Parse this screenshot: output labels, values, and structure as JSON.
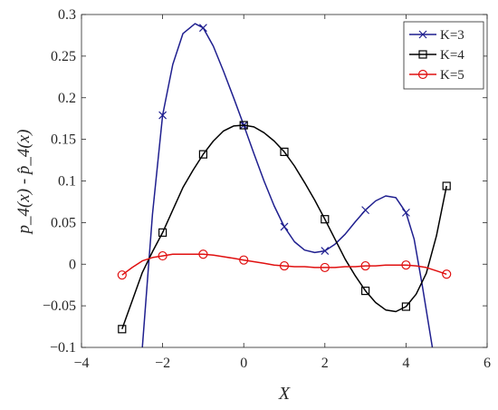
{
  "chart_data": {
    "type": "line",
    "xlabel": "X",
    "ylabel": "p_4(x) - p̂_4(x)",
    "xlim": [
      -4,
      6
    ],
    "ylim": [
      -0.1,
      0.3
    ],
    "xticks": [
      -4,
      -2,
      0,
      2,
      4,
      6
    ],
    "yticks": [
      -0.1,
      -0.05,
      0,
      0.05,
      0.1,
      0.15,
      0.2,
      0.25,
      0.3
    ],
    "xtick_labels": [
      "−4",
      "−2",
      "0",
      "2",
      "4",
      "6"
    ],
    "ytick_labels": [
      "−0.1",
      "−0.05",
      "0",
      "0.05",
      "0.1",
      "0.15",
      "0.2",
      "0.25",
      "0.3"
    ],
    "grid": false,
    "legend_position": "top-right",
    "series": [
      {
        "name": "K=3",
        "color": "#1f1f8f",
        "marker": "x",
        "markers": [
          {
            "x": -2,
            "y": 0.179
          },
          {
            "x": -1,
            "y": 0.284
          },
          {
            "x": 0,
            "y": 0.167
          },
          {
            "x": 1,
            "y": 0.045
          },
          {
            "x": 2,
            "y": 0.016
          },
          {
            "x": 3,
            "y": 0.065
          },
          {
            "x": 4,
            "y": 0.062
          }
        ],
        "curve": [
          {
            "x": -2.5,
            "y": -0.1
          },
          {
            "x": -2.25,
            "y": 0.06
          },
          {
            "x": -2.0,
            "y": 0.179
          },
          {
            "x": -1.75,
            "y": 0.24
          },
          {
            "x": -1.5,
            "y": 0.277
          },
          {
            "x": -1.2,
            "y": 0.289
          },
          {
            "x": -1.0,
            "y": 0.284
          },
          {
            "x": -0.75,
            "y": 0.262
          },
          {
            "x": -0.5,
            "y": 0.232
          },
          {
            "x": -0.25,
            "y": 0.2
          },
          {
            "x": 0.0,
            "y": 0.167
          },
          {
            "x": 0.25,
            "y": 0.133
          },
          {
            "x": 0.5,
            "y": 0.1
          },
          {
            "x": 0.75,
            "y": 0.07
          },
          {
            "x": 1.0,
            "y": 0.045
          },
          {
            "x": 1.25,
            "y": 0.027
          },
          {
            "x": 1.5,
            "y": 0.017
          },
          {
            "x": 1.75,
            "y": 0.014
          },
          {
            "x": 2.0,
            "y": 0.016
          },
          {
            "x": 2.25,
            "y": 0.024
          },
          {
            "x": 2.5,
            "y": 0.036
          },
          {
            "x": 2.75,
            "y": 0.051
          },
          {
            "x": 3.0,
            "y": 0.065
          },
          {
            "x": 3.25,
            "y": 0.076
          },
          {
            "x": 3.5,
            "y": 0.082
          },
          {
            "x": 3.75,
            "y": 0.08
          },
          {
            "x": 4.0,
            "y": 0.062
          },
          {
            "x": 4.2,
            "y": 0.03
          },
          {
            "x": 4.4,
            "y": -0.025
          },
          {
            "x": 4.55,
            "y": -0.07
          },
          {
            "x": 4.65,
            "y": -0.1
          }
        ]
      },
      {
        "name": "K=4",
        "color": "#000000",
        "marker": "square",
        "markers": [
          {
            "x": -3,
            "y": -0.078
          },
          {
            "x": -2,
            "y": 0.038
          },
          {
            "x": -1,
            "y": 0.132
          },
          {
            "x": 0,
            "y": 0.167
          },
          {
            "x": 1,
            "y": 0.135
          },
          {
            "x": 2,
            "y": 0.054
          },
          {
            "x": 3,
            "y": -0.032
          },
          {
            "x": 4,
            "y": -0.051
          },
          {
            "x": 5,
            "y": 0.094
          }
        ],
        "curve": [
          {
            "x": -3.0,
            "y": -0.078
          },
          {
            "x": -2.75,
            "y": -0.044
          },
          {
            "x": -2.5,
            "y": -0.01
          },
          {
            "x": -2.25,
            "y": 0.015
          },
          {
            "x": -2.0,
            "y": 0.038
          },
          {
            "x": -1.75,
            "y": 0.065
          },
          {
            "x": -1.5,
            "y": 0.092
          },
          {
            "x": -1.25,
            "y": 0.113
          },
          {
            "x": -1.0,
            "y": 0.132
          },
          {
            "x": -0.75,
            "y": 0.148
          },
          {
            "x": -0.5,
            "y": 0.16
          },
          {
            "x": -0.25,
            "y": 0.166
          },
          {
            "x": 0.0,
            "y": 0.167
          },
          {
            "x": 0.25,
            "y": 0.165
          },
          {
            "x": 0.5,
            "y": 0.158
          },
          {
            "x": 0.75,
            "y": 0.148
          },
          {
            "x": 1.0,
            "y": 0.135
          },
          {
            "x": 1.25,
            "y": 0.118
          },
          {
            "x": 1.5,
            "y": 0.098
          },
          {
            "x": 1.75,
            "y": 0.077
          },
          {
            "x": 2.0,
            "y": 0.054
          },
          {
            "x": 2.25,
            "y": 0.03
          },
          {
            "x": 2.5,
            "y": 0.006
          },
          {
            "x": 2.75,
            "y": -0.014
          },
          {
            "x": 3.0,
            "y": -0.032
          },
          {
            "x": 3.25,
            "y": -0.046
          },
          {
            "x": 3.5,
            "y": -0.055
          },
          {
            "x": 3.75,
            "y": -0.057
          },
          {
            "x": 4.0,
            "y": -0.051
          },
          {
            "x": 4.25,
            "y": -0.036
          },
          {
            "x": 4.5,
            "y": -0.011
          },
          {
            "x": 4.75,
            "y": 0.034
          },
          {
            "x": 5.0,
            "y": 0.094
          }
        ]
      },
      {
        "name": "K=5",
        "color": "#e01010",
        "marker": "circle",
        "markers": [
          {
            "x": -3,
            "y": -0.013
          },
          {
            "x": -2,
            "y": 0.01
          },
          {
            "x": -1,
            "y": 0.012
          },
          {
            "x": 0,
            "y": 0.005
          },
          {
            "x": 1,
            "y": -0.002
          },
          {
            "x": 2,
            "y": -0.004
          },
          {
            "x": 3,
            "y": -0.002
          },
          {
            "x": 4,
            "y": -0.001
          },
          {
            "x": 5,
            "y": -0.012
          }
        ],
        "curve": [
          {
            "x": -3.0,
            "y": -0.013
          },
          {
            "x": -2.75,
            "y": -0.004
          },
          {
            "x": -2.5,
            "y": 0.004
          },
          {
            "x": -2.25,
            "y": 0.008
          },
          {
            "x": -2.0,
            "y": 0.01
          },
          {
            "x": -1.75,
            "y": 0.012
          },
          {
            "x": -1.5,
            "y": 0.012
          },
          {
            "x": -1.25,
            "y": 0.012
          },
          {
            "x": -1.0,
            "y": 0.012
          },
          {
            "x": -0.75,
            "y": 0.011
          },
          {
            "x": -0.5,
            "y": 0.009
          },
          {
            "x": -0.25,
            "y": 0.007
          },
          {
            "x": 0.0,
            "y": 0.005
          },
          {
            "x": 0.25,
            "y": 0.003
          },
          {
            "x": 0.5,
            "y": 0.001
          },
          {
            "x": 0.75,
            "y": -0.001
          },
          {
            "x": 1.0,
            "y": -0.002
          },
          {
            "x": 1.25,
            "y": -0.003
          },
          {
            "x": 1.5,
            "y": -0.003
          },
          {
            "x": 1.75,
            "y": -0.004
          },
          {
            "x": 2.0,
            "y": -0.004
          },
          {
            "x": 2.25,
            "y": -0.004
          },
          {
            "x": 2.5,
            "y": -0.003
          },
          {
            "x": 2.75,
            "y": -0.003
          },
          {
            "x": 3.0,
            "y": -0.002
          },
          {
            "x": 3.25,
            "y": -0.002
          },
          {
            "x": 3.5,
            "y": -0.001
          },
          {
            "x": 3.75,
            "y": -0.001
          },
          {
            "x": 4.0,
            "y": -0.001
          },
          {
            "x": 4.25,
            "y": -0.002
          },
          {
            "x": 4.5,
            "y": -0.004
          },
          {
            "x": 4.75,
            "y": -0.008
          },
          {
            "x": 5.0,
            "y": -0.012
          }
        ]
      }
    ]
  }
}
